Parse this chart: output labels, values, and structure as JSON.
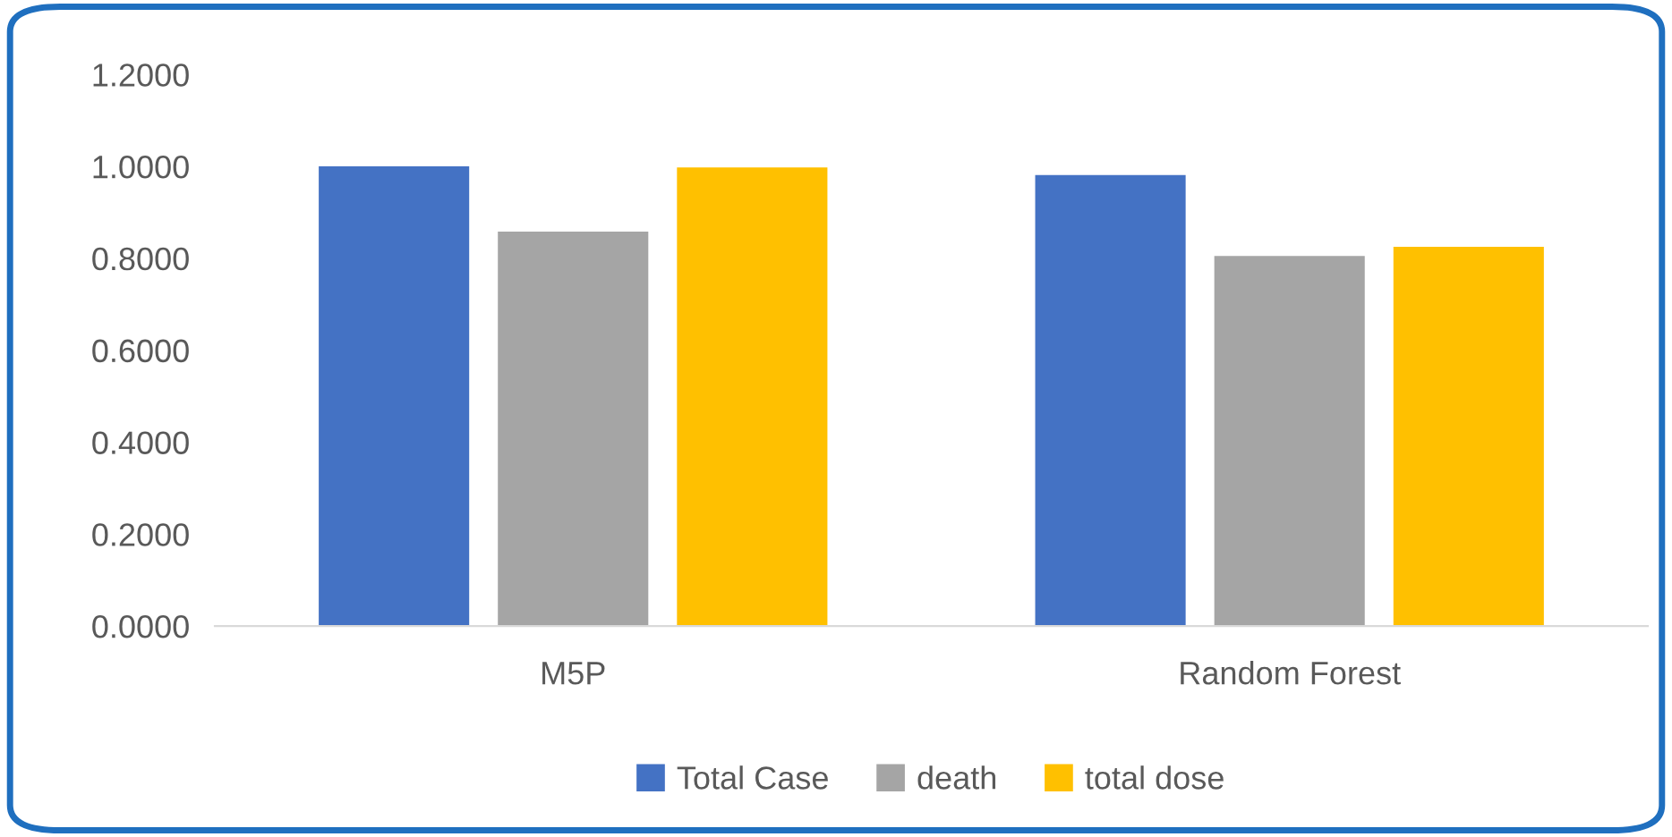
{
  "chart_data": {
    "type": "bar",
    "categories": [
      "M5P",
      "Random Forest"
    ],
    "series": [
      {
        "name": "Total Case",
        "color": "#4472c4",
        "values": [
          1.0,
          0.981
        ]
      },
      {
        "name": "death",
        "color": "#a5a5a5",
        "values": [
          0.858,
          0.805
        ]
      },
      {
        "name": "total dose",
        "color": "#ffc000",
        "values": [
          0.998,
          0.825
        ]
      }
    ],
    "ylim": [
      0,
      1.2
    ],
    "yticks": [
      {
        "value": 0,
        "label": "0.0000"
      },
      {
        "value": 0.2,
        "label": "0.2000"
      },
      {
        "value": 0.4,
        "label": "0.4000"
      },
      {
        "value": 0.6,
        "label": "0.6000"
      },
      {
        "value": 0.8,
        "label": "0.8000"
      },
      {
        "value": 1.0,
        "label": "1.0000"
      },
      {
        "value": 1.2,
        "label": "1.2000"
      }
    ],
    "grid": false,
    "legend": "bottom"
  }
}
